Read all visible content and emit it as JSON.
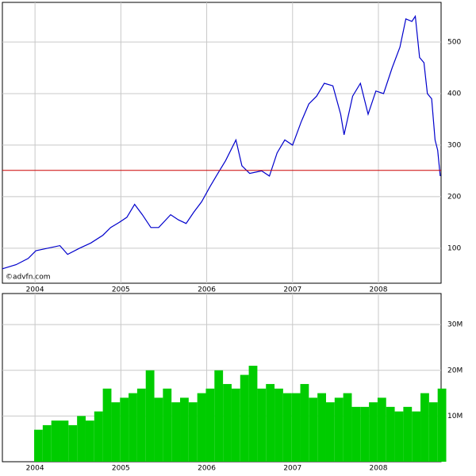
{
  "chart_data": [
    {
      "type": "line",
      "annotation": "©advfn.com",
      "color": "#0000cc",
      "grid": true,
      "hline": {
        "value": 251,
        "color": "#cc0000"
      },
      "xlim": [
        2003.62,
        2008.73
      ],
      "xticks": [
        2004,
        2005,
        2006,
        2007,
        2008
      ],
      "ylim": [
        32,
        577
      ],
      "yticks": [
        100,
        200,
        300,
        400,
        500
      ],
      "x": [
        2003.62,
        2003.78,
        2003.92,
        2004.01,
        2004.15,
        2004.29,
        2004.38,
        2004.52,
        2004.65,
        2004.79,
        2004.88,
        2004.98,
        2005.07,
        2005.16,
        2005.25,
        2005.35,
        2005.44,
        2005.58,
        2005.67,
        2005.76,
        2005.85,
        2005.94,
        2006.04,
        2006.13,
        2006.22,
        2006.34,
        2006.41,
        2006.5,
        2006.64,
        2006.73,
        2006.82,
        2006.91,
        2007.0,
        2007.1,
        2007.19,
        2007.28,
        2007.37,
        2007.47,
        2007.56,
        2007.6,
        2007.7,
        2007.79,
        2007.88,
        2007.97,
        2008.06,
        2008.16,
        2008.25,
        2008.32,
        2008.39,
        2008.43,
        2008.48,
        2008.53,
        2008.57,
        2008.62,
        2008.66,
        2008.69,
        2008.72
      ],
      "values": [
        60,
        68,
        80,
        95,
        100,
        105,
        88,
        100,
        110,
        125,
        140,
        150,
        160,
        185,
        165,
        140,
        140,
        165,
        155,
        148,
        170,
        190,
        220,
        245,
        270,
        310,
        260,
        245,
        250,
        240,
        285,
        310,
        300,
        345,
        380,
        395,
        420,
        415,
        360,
        320,
        395,
        420,
        360,
        405,
        400,
        450,
        490,
        545,
        540,
        550,
        470,
        460,
        400,
        390,
        310,
        290,
        240
      ]
    },
    {
      "type": "bar",
      "color": "#00cc00",
      "grid": true,
      "xlim": [
        2003.62,
        2008.73
      ],
      "xticks": [
        2004,
        2005,
        2006,
        2007,
        2008
      ],
      "ylim": [
        0,
        36.8
      ],
      "yticks": [
        {
          "value": 10,
          "label": "10M"
        },
        {
          "value": 20,
          "label": "20M"
        },
        {
          "value": 30,
          "label": "30M"
        }
      ],
      "x": [
        2003.99,
        2004.09,
        2004.19,
        2004.29,
        2004.39,
        2004.49,
        2004.59,
        2004.69,
        2004.79,
        2004.89,
        2004.99,
        2005.09,
        2005.19,
        2005.29,
        2005.39,
        2005.49,
        2005.59,
        2005.69,
        2005.79,
        2005.89,
        2005.99,
        2006.09,
        2006.19,
        2006.29,
        2006.39,
        2006.49,
        2006.59,
        2006.69,
        2006.79,
        2006.89,
        2006.99,
        2007.09,
        2007.19,
        2007.29,
        2007.39,
        2007.49,
        2007.59,
        2007.69,
        2007.79,
        2007.89,
        2007.99,
        2008.09,
        2008.19,
        2008.29,
        2008.39,
        2008.49,
        2008.59,
        2008.69
      ],
      "values": [
        7,
        8,
        9,
        9,
        8,
        10,
        9,
        11,
        16,
        13,
        14,
        15,
        16,
        20,
        14,
        16,
        13,
        14,
        13,
        15,
        16,
        20,
        17,
        16,
        19,
        21,
        16,
        17,
        16,
        15,
        15,
        17,
        14,
        15,
        13,
        14,
        15,
        12,
        12,
        13,
        14,
        12,
        11,
        12,
        11,
        15,
        13,
        16
      ]
    }
  ]
}
